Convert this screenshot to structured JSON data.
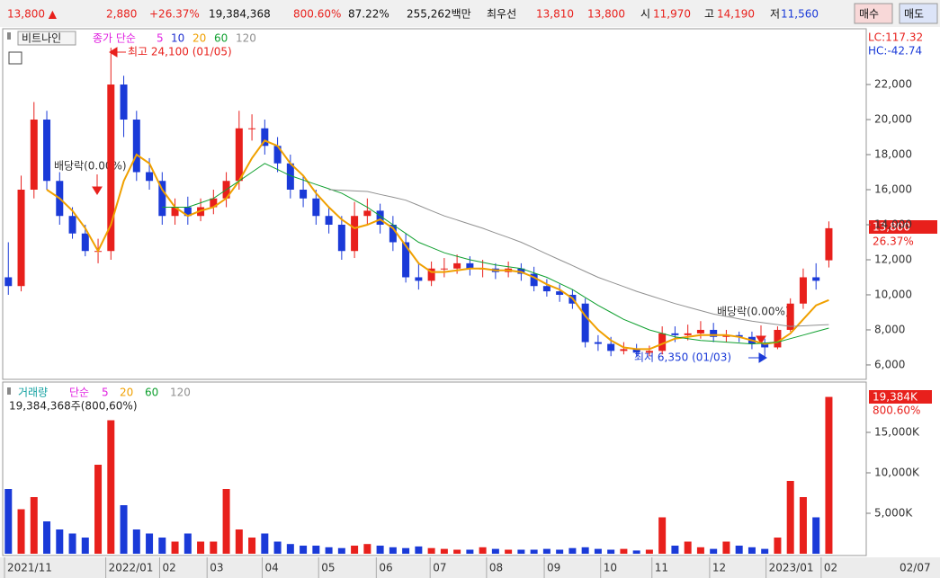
{
  "header": {
    "cells": [
      "13,800 ▲",
      "2,880",
      "+26.37%",
      "19,384,368",
      "800.60%",
      "87.22%",
      "255,262백만",
      "최우선",
      "13,810",
      "13,800",
      "시",
      "11,970",
      "고",
      "14,190",
      "저",
      "11,560",
      "매수",
      "매도"
    ]
  },
  "chart_data": [
    {
      "type": "candlestick",
      "stock": "비트나인",
      "ma_title": "종가 단순",
      "ma_legend": [
        {
          "name": "5",
          "color": "#e020e0"
        },
        {
          "name": "10",
          "color": "#2030d0"
        },
        {
          "name": "20",
          "color": "#f0a000"
        },
        {
          "name": "60",
          "color": "#10a030"
        },
        {
          "name": "120",
          "color": "#909090"
        }
      ],
      "open": [
        11000,
        10500,
        16000,
        20000,
        16500,
        14500,
        13500,
        12500,
        12500,
        22000,
        20000,
        17000,
        16500,
        14500,
        15000,
        14500,
        15000,
        15500,
        16500,
        19500,
        19500,
        18500,
        17500,
        16000,
        15500,
        14500,
        14000,
        12500,
        14500,
        14800,
        14000,
        13000,
        11000,
        10800,
        11500,
        11500,
        11800,
        11500,
        11500,
        11300,
        11500,
        11200,
        10500,
        10200,
        10000,
        9500,
        7300,
        7200,
        6800,
        6900,
        6700,
        6800,
        7800,
        7700,
        7800,
        8000,
        7600,
        7700,
        7600,
        7200,
        7000,
        8000,
        9500,
        11000,
        11970
      ],
      "high": [
        13000,
        16800,
        21000,
        20500,
        17000,
        15000,
        14000,
        13200,
        24100,
        22500,
        20500,
        17800,
        17000,
        15500,
        15600,
        15500,
        16000,
        17000,
        20500,
        20300,
        20000,
        19000,
        18000,
        16800,
        16000,
        15000,
        14500,
        15300,
        15500,
        15200,
        14500,
        13500,
        11800,
        11900,
        12100,
        12300,
        12200,
        12000,
        11800,
        11900,
        11800,
        11600,
        10900,
        10600,
        10300,
        9800,
        7700,
        7600,
        7300,
        7200,
        7100,
        8200,
        8200,
        8300,
        8500,
        8400,
        8000,
        7900,
        7900,
        7500,
        8200,
        9800,
        11500,
        11800,
        14190
      ],
      "low": [
        10000,
        10200,
        15500,
        16000,
        14000,
        13200,
        12200,
        11800,
        12000,
        19000,
        16500,
        16000,
        14000,
        14000,
        14000,
        14200,
        14600,
        15000,
        16000,
        18800,
        18000,
        17000,
        15500,
        15000,
        14000,
        13500,
        12000,
        12100,
        14000,
        13500,
        12500,
        10700,
        10300,
        10500,
        11000,
        11200,
        11100,
        11000,
        10900,
        11000,
        10800,
        10200,
        9900,
        9600,
        9200,
        7000,
        6800,
        6500,
        6600,
        6500,
        6500,
        6600,
        7300,
        7400,
        7500,
        7300,
        7300,
        7300,
        6900,
        6350,
        6900,
        7900,
        9200,
        10300,
        11560
      ],
      "close": [
        10500,
        16000,
        20000,
        16500,
        14500,
        13500,
        12500,
        12500,
        22000,
        20000,
        17000,
        16500,
        14500,
        15000,
        14500,
        15000,
        15500,
        16500,
        19500,
        19500,
        18500,
        17500,
        16000,
        15500,
        14500,
        14000,
        12500,
        14500,
        14800,
        14000,
        13000,
        11000,
        10800,
        11500,
        11500,
        11800,
        11500,
        11500,
        11300,
        11500,
        11200,
        10500,
        10200,
        10000,
        9500,
        7300,
        7200,
        6800,
        6900,
        6700,
        6800,
        7800,
        7700,
        7800,
        8000,
        7600,
        7700,
        7600,
        7200,
        7000,
        8000,
        9500,
        11000,
        10800,
        13800
      ],
      "colors": {
        "up": "#e8201c",
        "down": "#1a3ad8"
      },
      "series": [
        {
          "name": "20",
          "color": "#f0a000",
          "values": [
            null,
            null,
            null,
            16000,
            15500,
            14800,
            13800,
            12500,
            14000,
            16500,
            18000,
            17500,
            16000,
            15000,
            14500,
            14800,
            15000,
            15500,
            16500,
            17800,
            18800,
            18500,
            17500,
            16800,
            15800,
            15000,
            14300,
            13800,
            14000,
            14300,
            13800,
            12800,
            11800,
            11300,
            11300,
            11400,
            11500,
            11500,
            11400,
            11400,
            11300,
            11000,
            10600,
            10300,
            9800,
            8800,
            8000,
            7400,
            7000,
            6900,
            6900,
            7200,
            7500,
            7600,
            7700,
            7700,
            7700,
            7600,
            7400,
            7200,
            7300,
            7800,
            8600,
            9400,
            9700
          ]
        },
        {
          "name": "60",
          "color": "#10a030",
          "values": [
            null,
            null,
            null,
            null,
            null,
            null,
            null,
            null,
            null,
            null,
            null,
            null,
            15000,
            15000,
            15000,
            15250,
            15500,
            16000,
            16500,
            17000,
            17500,
            17150,
            16800,
            16550,
            16300,
            16050,
            15800,
            15400,
            15000,
            14500,
            14000,
            13500,
            13000,
            12700,
            12400,
            12200,
            12000,
            11850,
            11700,
            11600,
            11500,
            11250,
            11000,
            10650,
            10300,
            9850,
            9400,
            9000,
            8600,
            8300,
            8000,
            7800,
            7600,
            7500,
            7400,
            7350,
            7300,
            7250,
            7200,
            7250,
            7300,
            7500,
            7700,
            7900,
            8100
          ]
        },
        {
          "name": "120",
          "color": "#909090",
          "values": [
            null,
            null,
            null,
            null,
            null,
            null,
            null,
            null,
            null,
            null,
            null,
            null,
            null,
            null,
            null,
            null,
            null,
            null,
            null,
            null,
            null,
            null,
            null,
            null,
            null,
            16000,
            15970,
            15930,
            15900,
            15730,
            15570,
            15400,
            15100,
            14800,
            14500,
            14270,
            14030,
            13800,
            13530,
            13270,
            13000,
            12670,
            12330,
            12000,
            11670,
            11330,
            11000,
            10730,
            10470,
            10200,
            9970,
            9730,
            9500,
            9300,
            9100,
            8900,
            8770,
            8630,
            8500,
            8400,
            8300,
            8200,
            8230,
            8270,
            8300
          ]
        }
      ],
      "ylim": [
        5280,
        25130
      ],
      "yticks": [
        {
          "value": 6000,
          "label": "6,000"
        },
        {
          "value": 8000,
          "label": "8,000"
        },
        {
          "value": 10000,
          "label": "10,000"
        },
        {
          "value": 12000,
          "label": "12,000"
        },
        {
          "value": 14000,
          "label": "14,000"
        },
        {
          "value": 16000,
          "label": "16,000"
        },
        {
          "value": 18000,
          "label": "18,000"
        },
        {
          "value": 20000,
          "label": "20,000"
        },
        {
          "value": 22000,
          "label": "22,000"
        }
      ],
      "xlim": [
        -0.3,
        64.6
      ],
      "xticks": [
        {
          "value": -0.3,
          "label": "2021/11"
        },
        {
          "value": 7.6,
          "label": "2022/01"
        },
        {
          "value": 11.8,
          "label": "02"
        },
        {
          "value": 15.5,
          "label": "03"
        },
        {
          "value": 19.8,
          "label": "04"
        },
        {
          "value": 24.2,
          "label": "05"
        },
        {
          "value": 28.7,
          "label": "06"
        },
        {
          "value": 32.9,
          "label": "07"
        },
        {
          "value": 37.3,
          "label": "08"
        },
        {
          "value": 41.8,
          "label": "09"
        },
        {
          "value": 46.2,
          "label": "10"
        },
        {
          "value": 50.2,
          "label": "11"
        },
        {
          "value": 54.7,
          "label": "12"
        },
        {
          "value": 59.1,
          "label": "2023/01"
        },
        {
          "value": 63.4,
          "label": "02"
        }
      ],
      "last_date": "02/07",
      "annotations": {
        "high": "최고 24,100 (01/05)",
        "low": "최저 6,350 (01/03)",
        "dividend1": "배당락(0.00%)",
        "dividend2": "배당락(0.00%)",
        "lc": "LC:117.32",
        "hc": "HC:-42.74",
        "price": "13,800",
        "change": "26.37%"
      }
    },
    {
      "type": "bar",
      "title": "거래량",
      "ma_title": "단순",
      "ma_legend": [
        "5",
        "20",
        "60",
        "120"
      ],
      "info": "19,384,368주(800,60%)",
      "values": [
        8000,
        5500,
        7000,
        4000,
        3000,
        2500,
        2000,
        11000,
        16500,
        6000,
        3000,
        2500,
        2000,
        1500,
        2500,
        1500,
        1500,
        8000,
        3000,
        2000,
        2500,
        1500,
        1200,
        1000,
        1000,
        800,
        700,
        1000,
        1200,
        1000,
        800,
        700,
        900,
        700,
        600,
        500,
        500,
        800,
        600,
        500,
        500,
        500,
        600,
        500,
        700,
        800,
        600,
        500,
        600,
        400,
        500,
        4500,
        1000,
        1500,
        800,
        600,
        1500,
        1000,
        800,
        600,
        2000,
        9000,
        7000,
        4500,
        19384
      ],
      "ylim": [
        0,
        21000
      ],
      "yticks": [
        {
          "value": 5000,
          "label": "5,000K"
        },
        {
          "value": 10000,
          "label": "10,000K"
        },
        {
          "value": 15000,
          "label": "15,000K"
        }
      ],
      "annotations": {
        "volume": "19,384K",
        "ratio": "800.60%"
      }
    }
  ]
}
